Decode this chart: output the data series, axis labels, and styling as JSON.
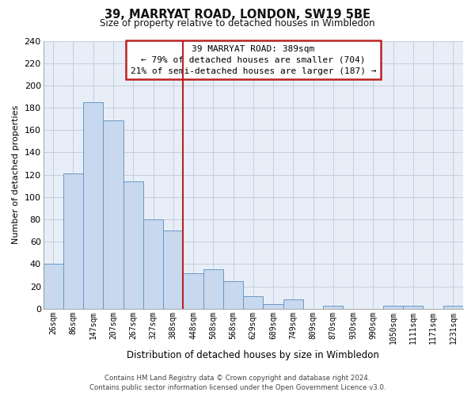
{
  "title": "39, MARRYAT ROAD, LONDON, SW19 5BE",
  "subtitle": "Size of property relative to detached houses in Wimbledon",
  "xlabel": "Distribution of detached houses by size in Wimbledon",
  "ylabel": "Number of detached properties",
  "bar_labels": [
    "26sqm",
    "86sqm",
    "147sqm",
    "207sqm",
    "267sqm",
    "327sqm",
    "388sqm",
    "448sqm",
    "508sqm",
    "568sqm",
    "629sqm",
    "689sqm",
    "749sqm",
    "809sqm",
    "870sqm",
    "930sqm",
    "990sqm",
    "1050sqm",
    "1111sqm",
    "1171sqm",
    "1231sqm"
  ],
  "bar_values": [
    40,
    121,
    185,
    169,
    114,
    80,
    70,
    32,
    35,
    25,
    11,
    4,
    8,
    0,
    3,
    0,
    0,
    3,
    3,
    0,
    3
  ],
  "bar_color": "#c8d8ee",
  "bar_edge_color": "#6899c4",
  "vline_index": 6,
  "vline_color": "#bb2222",
  "ylim": [
    0,
    240
  ],
  "yticks": [
    0,
    20,
    40,
    60,
    80,
    100,
    120,
    140,
    160,
    180,
    200,
    220,
    240
  ],
  "annotation_title": "39 MARRYAT ROAD: 389sqm",
  "annotation_line1": "← 79% of detached houses are smaller (704)",
  "annotation_line2": "21% of semi-detached houses are larger (187) →",
  "annotation_box_edge": "#bb2222",
  "footer_line1": "Contains HM Land Registry data © Crown copyright and database right 2024.",
  "footer_line2": "Contains public sector information licensed under the Open Government Licence v3.0.",
  "plot_bg_color": "#e8eef8",
  "fig_bg_color": "#ffffff",
  "grid_color": "#c0c8d8"
}
